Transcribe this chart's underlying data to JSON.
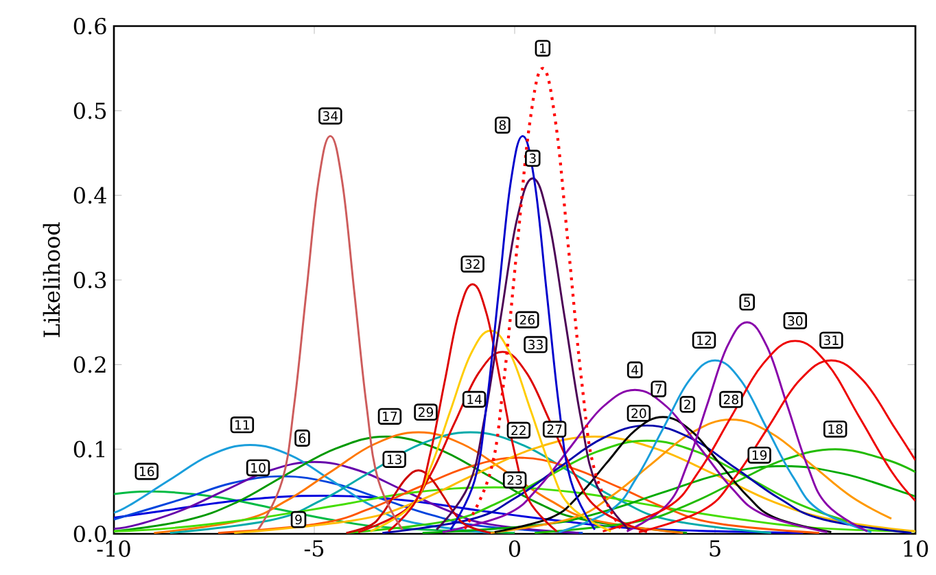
{
  "chart_data": {
    "type": "line",
    "ylabel": "Likelihood",
    "xlim": [
      -10,
      10
    ],
    "ylim": [
      0,
      0.6
    ],
    "xticks": [
      -10,
      -5,
      0,
      5,
      10
    ],
    "yticks": [
      {
        "value": 0,
        "label": "0.0"
      },
      {
        "value": 0.1,
        "label": "0.1"
      },
      {
        "value": 0.2,
        "label": "0.2"
      },
      {
        "value": 0.3,
        "label": "0.3"
      },
      {
        "value": 0.4,
        "label": "0.4"
      },
      {
        "value": 0.5,
        "label": "0.5"
      },
      {
        "value": 0.6,
        "label": "0.6"
      }
    ],
    "grid": false,
    "marker": "none",
    "line_style": "solid",
    "series": [
      {
        "color": "#00bb44",
        "x": [
          -10,
          -9,
          -7.5,
          -6,
          -4.5,
          -3,
          0
        ],
        "values": [
          0.047,
          0.05,
          0.044,
          0.03,
          0.016,
          0.007,
          0.001
        ]
      },
      {
        "color": "#0000dd",
        "x": [
          -10,
          -8.8,
          -6.8,
          -4.8,
          -2.8,
          -0.8,
          1.2,
          3.2,
          7.2
        ],
        "values": [
          0.019,
          0.027,
          0.04,
          0.045,
          0.04,
          0.027,
          0.015,
          0.006,
          0.001
        ]
      },
      {
        "color": "#0044dd",
        "x": [
          -10,
          -8.3,
          -7.05,
          -5.8,
          -4.55,
          -3.3,
          -2.05,
          -0.8,
          1.7
        ],
        "values": [
          0.017,
          0.041,
          0.06,
          0.068,
          0.06,
          0.041,
          0.022,
          0.009,
          0.001
        ]
      },
      {
        "color": "#6600aa",
        "x": [
          -10,
          -9.4,
          -8.3,
          -7.2,
          -6.1,
          -5.0,
          -3.9,
          -2.8,
          -1.7,
          -0.6,
          1.6
        ],
        "values": [
          0.006,
          0.011,
          0.028,
          0.052,
          0.075,
          0.085,
          0.075,
          0.052,
          0.028,
          0.011,
          0.001
        ]
      },
      {
        "color": "#1a9edb",
        "x": [
          -10,
          -9.6,
          -8.6,
          -7.6,
          -6.6,
          -5.6,
          -4.6,
          -3.6,
          -2.6,
          -0.6
        ],
        "values": [
          0.025,
          0.034,
          0.064,
          0.093,
          0.105,
          0.093,
          0.064,
          0.034,
          0.014,
          0.001
        ]
      },
      {
        "color": "#009900",
        "x": [
          -10,
          -8.2,
          -6.95,
          -5.7,
          -4.45,
          -3.2,
          -1.95,
          -0.7,
          0.55,
          1.8,
          4.3
        ],
        "values": [
          0.003,
          0.016,
          0.037,
          0.07,
          0.101,
          0.115,
          0.101,
          0.07,
          0.037,
          0.016,
          0.001
        ]
      },
      {
        "color": "#ff7700",
        "x": [
          -9.0,
          -6.8,
          -5.7,
          -4.6,
          -3.5,
          -2.4,
          -1.3,
          -0.2,
          0.9,
          2.0,
          4.2
        ],
        "values": [
          0.001,
          0.016,
          0.039,
          0.073,
          0.106,
          0.12,
          0.106,
          0.073,
          0.039,
          0.016,
          0.001
        ]
      },
      {
        "color": "#00aaaa",
        "x": [
          -8.6,
          -6.1,
          -4.85,
          -3.6,
          -2.35,
          -1.1,
          0.15,
          1.4,
          2.65,
          3.9,
          6.4
        ],
        "values": [
          0.001,
          0.016,
          0.039,
          0.073,
          0.106,
          0.12,
          0.106,
          0.073,
          0.039,
          0.016,
          0.001
        ]
      },
      {
        "color": "#44dd00",
        "x": [
          -10,
          -8.5,
          -6.5,
          -4.5,
          -2.5,
          -0.5,
          1.5,
          3.5,
          5.5,
          7.5,
          10
        ],
        "values": [
          0.003,
          0.007,
          0.018,
          0.033,
          0.049,
          0.055,
          0.049,
          0.033,
          0.018,
          0.007,
          0.003
        ]
      },
      {
        "color": "#ff5500",
        "x": [
          -7.4,
          -4.9,
          -3.65,
          -2.4,
          -1.15,
          0.1,
          1.35,
          2.6,
          3.85,
          5.1,
          7.6
        ],
        "values": [
          0.001,
          0.012,
          0.029,
          0.055,
          0.079,
          0.09,
          0.079,
          0.055,
          0.029,
          0.012,
          0.001
        ]
      },
      {
        "color": "#ffbb00",
        "x": [
          -7,
          -4,
          -2.5,
          -1,
          0.5,
          2,
          3.5,
          5,
          6.5,
          8,
          10
        ],
        "values": [
          0.001,
          0.016,
          0.037,
          0.07,
          0.101,
          0.115,
          0.101,
          0.07,
          0.037,
          0.016,
          0.003
        ]
      },
      {
        "color": "#00aa00",
        "x": [
          -2.3,
          0.7,
          2.2,
          3.7,
          5.2,
          6.7,
          8.2,
          9.7,
          10
        ],
        "values": [
          0.001,
          0.011,
          0.026,
          0.049,
          0.071,
          0.08,
          0.071,
          0.049,
          0.044
        ]
      },
      {
        "color": "#22bb00",
        "x": [
          0.5,
          3.0,
          4.25,
          5.5,
          6.75,
          8.0,
          9.25,
          10
        ],
        "values": [
          0.001,
          0.014,
          0.033,
          0.061,
          0.088,
          0.1,
          0.088,
          0.073
        ]
      },
      {
        "color": "#33cc00",
        "x": [
          -4.2,
          -1.7,
          -0.45,
          0.8,
          2.05,
          3.3,
          4.55,
          5.8,
          7.05,
          8.3
        ],
        "values": [
          0.001,
          0.015,
          0.036,
          0.067,
          0.097,
          0.11,
          0.097,
          0.067,
          0.036,
          0.015
        ]
      },
      {
        "color": "#ff9900",
        "x": [
          -0.6,
          1.4,
          2.4,
          3.4,
          4.4,
          5.4,
          6.4,
          7.4,
          8.4,
          9.4
        ],
        "values": [
          0.001,
          0.018,
          0.044,
          0.082,
          0.119,
          0.135,
          0.119,
          0.082,
          0.044,
          0.018
        ]
      },
      {
        "color": "#0000aa",
        "x": [
          -3.3,
          -1.1,
          0.0,
          1.1,
          2.2,
          3.3,
          4.4,
          5.5,
          6.6,
          7.7,
          9.9
        ],
        "values": [
          0.001,
          0.017,
          0.042,
          0.078,
          0.113,
          0.128,
          0.113,
          0.078,
          0.042,
          0.017,
          0.001
        ]
      },
      {
        "color": "#000000",
        "x": [
          -0.5,
          0.9,
          1.6,
          2.3,
          3.0,
          3.7,
          4.4,
          5.1,
          5.8,
          6.5,
          7.9
        ],
        "values": [
          0.002,
          0.019,
          0.045,
          0.084,
          0.122,
          0.138,
          0.122,
          0.084,
          0.045,
          0.019,
          0.002
        ]
      },
      {
        "color": "#8800aa",
        "x": [
          -1.8,
          -0.2,
          0.6,
          1.4,
          2.2,
          3.0,
          3.8,
          4.6,
          5.4,
          6.2,
          7.8
        ],
        "values": [
          0.002,
          0.023,
          0.055,
          0.103,
          0.15,
          0.17,
          0.15,
          0.103,
          0.055,
          0.023,
          0.002
        ]
      },
      {
        "color": "#1a9edb",
        "x": [
          1.1,
          2.4,
          3.05,
          3.7,
          4.35,
          5.0,
          5.65,
          6.3,
          6.95,
          7.6,
          8.9
        ],
        "values": [
          0.002,
          0.028,
          0.067,
          0.124,
          0.181,
          0.205,
          0.181,
          0.124,
          0.067,
          0.028,
          0.002
        ]
      },
      {
        "color": "#8800aa",
        "x": [
          2.8,
          3.8,
          4.3,
          4.8,
          5.3,
          5.8,
          6.3,
          6.8,
          7.3,
          7.8,
          8.8
        ],
        "values": [
          0.003,
          0.034,
          0.081,
          0.152,
          0.221,
          0.25,
          0.221,
          0.152,
          0.081,
          0.034,
          0.003
        ]
      },
      {
        "color": "#ee0000",
        "x": [
          2.2,
          3.8,
          4.6,
          5.4,
          6.2,
          7.0,
          7.8,
          8.6,
          9.4,
          10
        ],
        "values": [
          0.003,
          0.031,
          0.074,
          0.138,
          0.201,
          0.228,
          0.201,
          0.138,
          0.074,
          0.039
        ]
      },
      {
        "color": "#ee0000",
        "x": [
          3.1,
          4.7,
          5.5,
          6.3,
          7.1,
          7.9,
          8.7,
          9.5,
          10
        ],
        "values": [
          0.002,
          0.028,
          0.067,
          0.124,
          0.181,
          0.205,
          0.181,
          0.124,
          0.087
        ]
      },
      {
        "color": "#cc0000",
        "x": [
          -4.2,
          -3.6,
          -3.3,
          -3.0,
          -2.7,
          -2.4,
          -2.1,
          -1.8,
          -1.5,
          -1.2,
          -0.6
        ],
        "values": [
          0.001,
          0.01,
          0.024,
          0.046,
          0.066,
          0.075,
          0.066,
          0.046,
          0.024,
          0.01,
          0.001
        ]
      },
      {
        "color": "#dd0000",
        "x": [
          -3.9,
          -2.7,
          -2.1,
          -1.5,
          -0.9,
          -0.3,
          0.3,
          0.9,
          1.5,
          2.1,
          3.3
        ],
        "values": [
          0.002,
          0.029,
          0.07,
          0.131,
          0.19,
          0.215,
          0.19,
          0.131,
          0.07,
          0.029,
          0.002
        ]
      },
      {
        "color": "#ffcc00",
        "x": [
          -3.6,
          -2.6,
          -2.1,
          -1.6,
          -1.1,
          -0.6,
          -0.1,
          0.4,
          0.9,
          1.4,
          2.4
        ],
        "values": [
          0.003,
          0.032,
          0.078,
          0.146,
          0.212,
          0.24,
          0.212,
          0.146,
          0.078,
          0.032,
          0.003
        ]
      },
      {
        "color": "#dd0000",
        "x": [
          -3.15,
          -2.45,
          -2.1,
          -1.75,
          -1.4,
          -1.05,
          -0.7,
          -0.35,
          0.0,
          0.35,
          1.05
        ],
        "values": [
          0.003,
          0.04,
          0.096,
          0.179,
          0.26,
          0.295,
          0.26,
          0.179,
          0.096,
          0.04,
          0.003
        ]
      },
      {
        "color": "#cd5c5c",
        "x": [
          -6.4,
          -5.8,
          -5.5,
          -5.2,
          -4.9,
          -4.6,
          -4.3,
          -4.0,
          -3.7,
          -3.4,
          -2.8
        ],
        "values": [
          0.005,
          0.063,
          0.153,
          0.285,
          0.415,
          0.47,
          0.415,
          0.285,
          0.153,
          0.063,
          0.005
        ]
      },
      {
        "color": "#4b0055",
        "x": [
          -1.95,
          -1.15,
          -0.75,
          -0.35,
          0.05,
          0.45,
          0.85,
          1.25,
          1.65,
          2.05,
          2.85
        ],
        "values": [
          0.005,
          0.057,
          0.137,
          0.255,
          0.37,
          0.42,
          0.37,
          0.255,
          0.137,
          0.057,
          0.005
        ]
      },
      {
        "color": "#0000cc",
        "x": [
          -1.6,
          -1.0,
          -0.7,
          -0.4,
          -0.1,
          0.2,
          0.5,
          0.8,
          1.1,
          1.4,
          2.0
        ],
        "values": [
          0.005,
          0.063,
          0.153,
          0.285,
          0.415,
          0.47,
          0.415,
          0.285,
          0.153,
          0.063,
          0.005
        ]
      },
      {
        "color": "#ff0000",
        "line_style": "dotted",
        "x": [
          -1.25,
          -0.6,
          -0.275,
          0.05,
          0.375,
          0.7,
          1.025,
          1.35,
          1.675,
          2.0,
          2.65
        ],
        "values": [
          0.006,
          0.074,
          0.179,
          0.334,
          0.485,
          0.55,
          0.485,
          0.334,
          0.179,
          0.074,
          0.006
        ]
      }
    ],
    "annotations": [
      {
        "text": "1",
        "x": 0.7,
        "y": 0.55
      },
      {
        "text": "2",
        "x": 3.9,
        "y": 0.14
      },
      {
        "text": "3",
        "x": 0.45,
        "y": 0.42
      },
      {
        "text": "4",
        "x": 3.0,
        "y": 0.17
      },
      {
        "text": "5",
        "x": 5.8,
        "y": 0.25
      },
      {
        "text": "6",
        "x": -5.3,
        "y": 0.085
      },
      {
        "text": "7",
        "x": 3.5,
        "y": 0.128
      },
      {
        "text": "8",
        "x": 0.2,
        "y": 0.47
      },
      {
        "text": "9",
        "x": -4.8,
        "y": 0.045
      },
      {
        "text": "10",
        "x": -5.9,
        "y": 0.065
      },
      {
        "text": "11",
        "x": -6.8,
        "y": 0.105
      },
      {
        "text": "12",
        "x": 5.0,
        "y": 0.205
      },
      {
        "text": "13",
        "x": -2.5,
        "y": 0.075
      },
      {
        "text": "14",
        "x": -1.1,
        "y": 0.12
      },
      {
        "text": "16",
        "x": -9.0,
        "y": 0.05
      },
      {
        "text": "17",
        "x": -3.3,
        "y": 0.115
      },
      {
        "text": "18",
        "x": 8.0,
        "y": 0.1
      },
      {
        "text": "19",
        "x": 6.7,
        "y": 0.08
      },
      {
        "text": "20",
        "x": 3.6,
        "y": 0.11
      },
      {
        "text": "22",
        "x": 0.1,
        "y": 0.09
      },
      {
        "text": "23",
        "x": -0.5,
        "y": 0.055
      },
      {
        "text": "26",
        "x": -0.6,
        "y": 0.24
      },
      {
        "text": "27",
        "x": 2.0,
        "y": 0.115
      },
      {
        "text": "28",
        "x": 5.4,
        "y": 0.135
      },
      {
        "text": "29",
        "x": -2.4,
        "y": 0.12
      },
      {
        "text": "30",
        "x": 7.0,
        "y": 0.228
      },
      {
        "text": "31",
        "x": 7.9,
        "y": 0.205
      },
      {
        "text": "32",
        "x": -1.05,
        "y": 0.295
      },
      {
        "text": "33",
        "x": -0.3,
        "y": 0.215
      },
      {
        "text": "34",
        "x": -4.6,
        "y": 0.47
      }
    ]
  }
}
